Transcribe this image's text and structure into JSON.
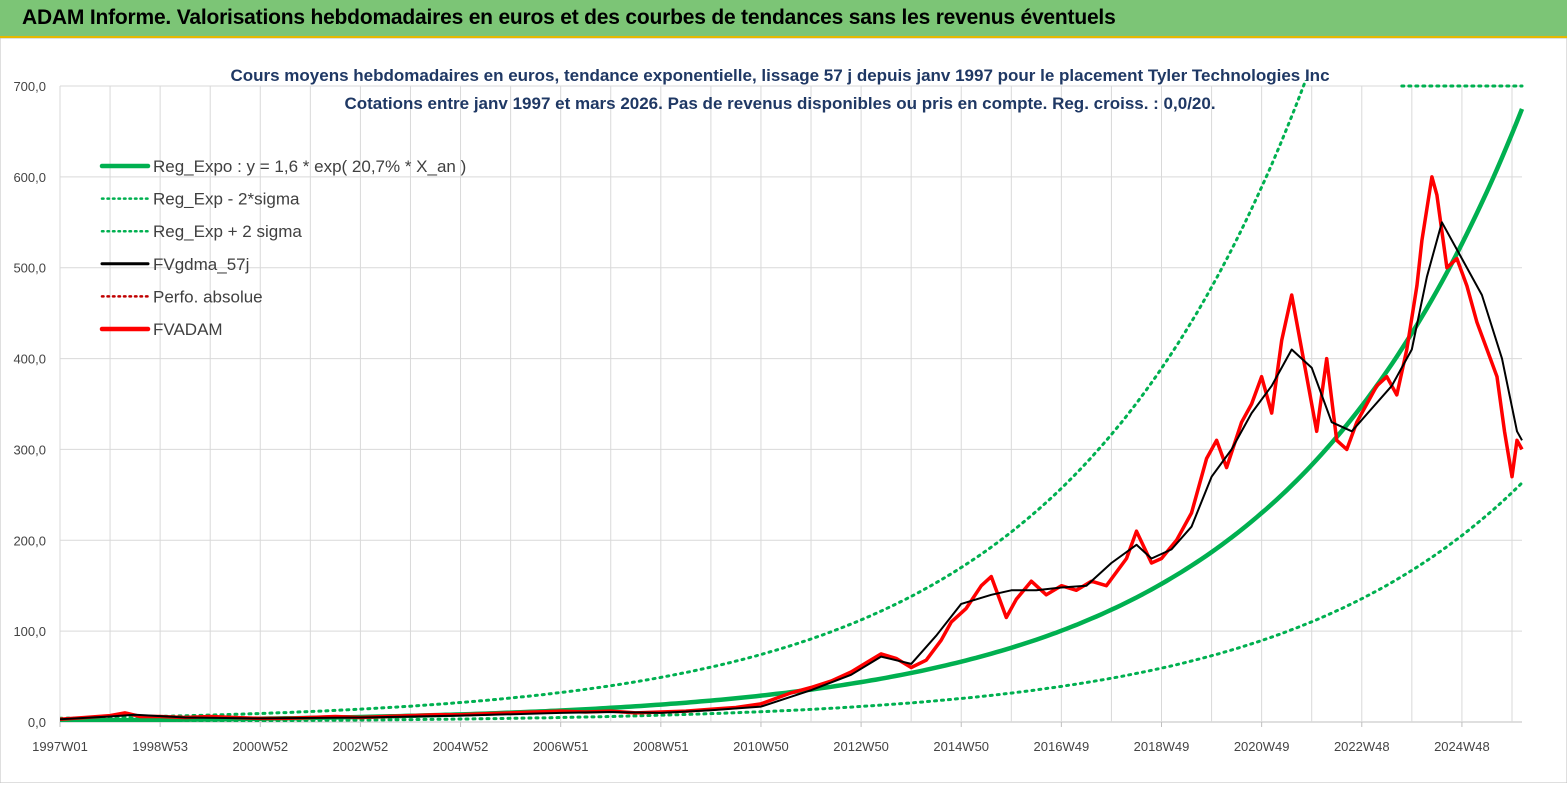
{
  "header": {
    "title": "ADAM Informe. Valorisations hebdomadaires en euros et des courbes de tendances sans les revenus éventuels"
  },
  "chart_data": {
    "type": "line",
    "title_line1": "Cours moyens hebdomadaires en euros, tendance exponentielle, lissage 57 j depuis janv 1997 pour le placement Tyler Technologies Inc",
    "title_line2": "Cotations entre janv 1997 et mars 2026. Pas de revenus disponibles ou pris en compte. Reg. croiss. : 0,0/20.",
    "xlim": [
      1997.0,
      2026.2
    ],
    "ylim": [
      0,
      700
    ],
    "y_ticks": [
      0,
      100,
      200,
      300,
      400,
      500,
      600,
      700
    ],
    "y_tick_labels": [
      "0,0",
      "100,0",
      "200,0",
      "300,0",
      "400,0",
      "500,0",
      "600,0",
      "700,0"
    ],
    "x_ticks": [
      1997.0,
      1999.0,
      2001.0,
      2003.0,
      2005.0,
      2007.0,
      2009.0,
      2011.0,
      2013.0,
      2015.0,
      2017.0,
      2019.0,
      2021.0,
      2023.0,
      2025.0
    ],
    "x_tick_labels": [
      "1997W01",
      "1998W53",
      "2000W52",
      "2002W52",
      "2004W52",
      "2006W51",
      "2008W51",
      "2010W50",
      "2012W50",
      "2014W50",
      "2016W49",
      "2018W49",
      "2020W49",
      "2022W48",
      "2024W48"
    ],
    "legend": [
      {
        "key": "reg_expo",
        "label": "Reg_Expo : y = 1,6 * exp( 20,7% *  X_an )",
        "color": "#00b050",
        "style": "solid-thick"
      },
      {
        "key": "reg_minus",
        "label": "Reg_Exp - 2*sigma",
        "color": "#00b050",
        "style": "dotted"
      },
      {
        "key": "reg_plus",
        "label": "Reg_Exp + 2 sigma",
        "color": "#00b050",
        "style": "dotted"
      },
      {
        "key": "fvgdma",
        "label": "FVgdma_57j",
        "color": "#000000",
        "style": "solid"
      },
      {
        "key": "perfo",
        "label": "Perfo. absolue",
        "color": "#c00000",
        "style": "dotted"
      },
      {
        "key": "fvadam",
        "label": "FVADAM",
        "color": "#ff0000",
        "style": "solid-thick"
      }
    ],
    "reg_model": {
      "a": 1.6,
      "rate": 0.207,
      "minus_factor": 0.39,
      "plus_factor": 2.56
    },
    "series": [
      {
        "name": "FVADAM",
        "x": [
          1997.0,
          1997.5,
          1998.0,
          1998.3,
          1998.6,
          1999.0,
          1999.5,
          2000.0,
          2000.5,
          2001.0,
          2001.5,
          2002.0,
          2002.5,
          2003.0,
          2003.5,
          2004.0,
          2004.5,
          2005.0,
          2005.5,
          2006.0,
          2006.5,
          2007.0,
          2007.5,
          2008.0,
          2008.5,
          2009.0,
          2009.5,
          2010.0,
          2010.5,
          2011.0,
          2011.3,
          2011.6,
          2012.0,
          2012.4,
          2012.8,
          2013.1,
          2013.4,
          2013.7,
          2014.0,
          2014.3,
          2014.6,
          2014.8,
          2015.1,
          2015.4,
          2015.6,
          2015.9,
          2016.1,
          2016.4,
          2016.7,
          2017.0,
          2017.3,
          2017.6,
          2017.9,
          2018.3,
          2018.5,
          2018.8,
          2019.0,
          2019.3,
          2019.6,
          2019.9,
          2020.1,
          2020.3,
          2020.6,
          2020.8,
          2021.0,
          2021.2,
          2021.4,
          2021.6,
          2021.8,
          2021.9,
          2022.1,
          2022.3,
          2022.5,
          2022.7,
          2022.9,
          2023.1,
          2023.3,
          2023.5,
          2023.7,
          2023.9,
          2024.1,
          2024.2,
          2024.4,
          2024.5,
          2024.7,
          2024.9,
          2025.1,
          2025.3,
          2025.5,
          2025.7,
          2025.85,
          2026.0,
          2026.1,
          2026.2
        ],
        "values": [
          3,
          5,
          7,
          10,
          6,
          6,
          5,
          6,
          5,
          4,
          4,
          5,
          6,
          5,
          6,
          7,
          8,
          8,
          9,
          10,
          11,
          12,
          11,
          12,
          10,
          11,
          12,
          14,
          16,
          20,
          26,
          32,
          38,
          45,
          55,
          65,
          75,
          70,
          60,
          68,
          90,
          110,
          125,
          150,
          160,
          115,
          135,
          155,
          140,
          150,
          145,
          155,
          150,
          180,
          210,
          175,
          180,
          200,
          230,
          290,
          310,
          280,
          330,
          350,
          380,
          340,
          420,
          470,
          410,
          380,
          320,
          400,
          310,
          300,
          330,
          350,
          370,
          380,
          360,
          410,
          480,
          530,
          600,
          580,
          500,
          510,
          480,
          440,
          410,
          380,
          320,
          270,
          310,
          300
        ]
      },
      {
        "name": "FVgdma_57j",
        "x": [
          1997.0,
          1998.0,
          1998.5,
          1999.5,
          2001.0,
          2003.0,
          2005.0,
          2007.0,
          2008.0,
          2009.0,
          2010.0,
          2011.0,
          2012.0,
          2012.8,
          2013.4,
          2014.0,
          2014.5,
          2015.0,
          2015.6,
          2016.0,
          2016.5,
          2017.0,
          2017.5,
          2018.0,
          2018.5,
          2018.8,
          2019.2,
          2019.6,
          2020.0,
          2020.4,
          2020.8,
          2021.2,
          2021.6,
          2022.0,
          2022.4,
          2022.8,
          2023.2,
          2023.6,
          2024.0,
          2024.3,
          2024.6,
          2025.0,
          2025.4,
          2025.8,
          2026.1,
          2026.2
        ],
        "values": [
          3,
          6,
          8,
          5,
          4,
          5,
          7,
          10,
          11,
          10,
          13,
          17,
          35,
          52,
          72,
          64,
          95,
          130,
          140,
          145,
          145,
          148,
          150,
          175,
          195,
          180,
          190,
          215,
          270,
          300,
          340,
          370,
          410,
          390,
          330,
          320,
          345,
          370,
          410,
          490,
          550,
          510,
          470,
          400,
          320,
          310
        ]
      }
    ]
  }
}
